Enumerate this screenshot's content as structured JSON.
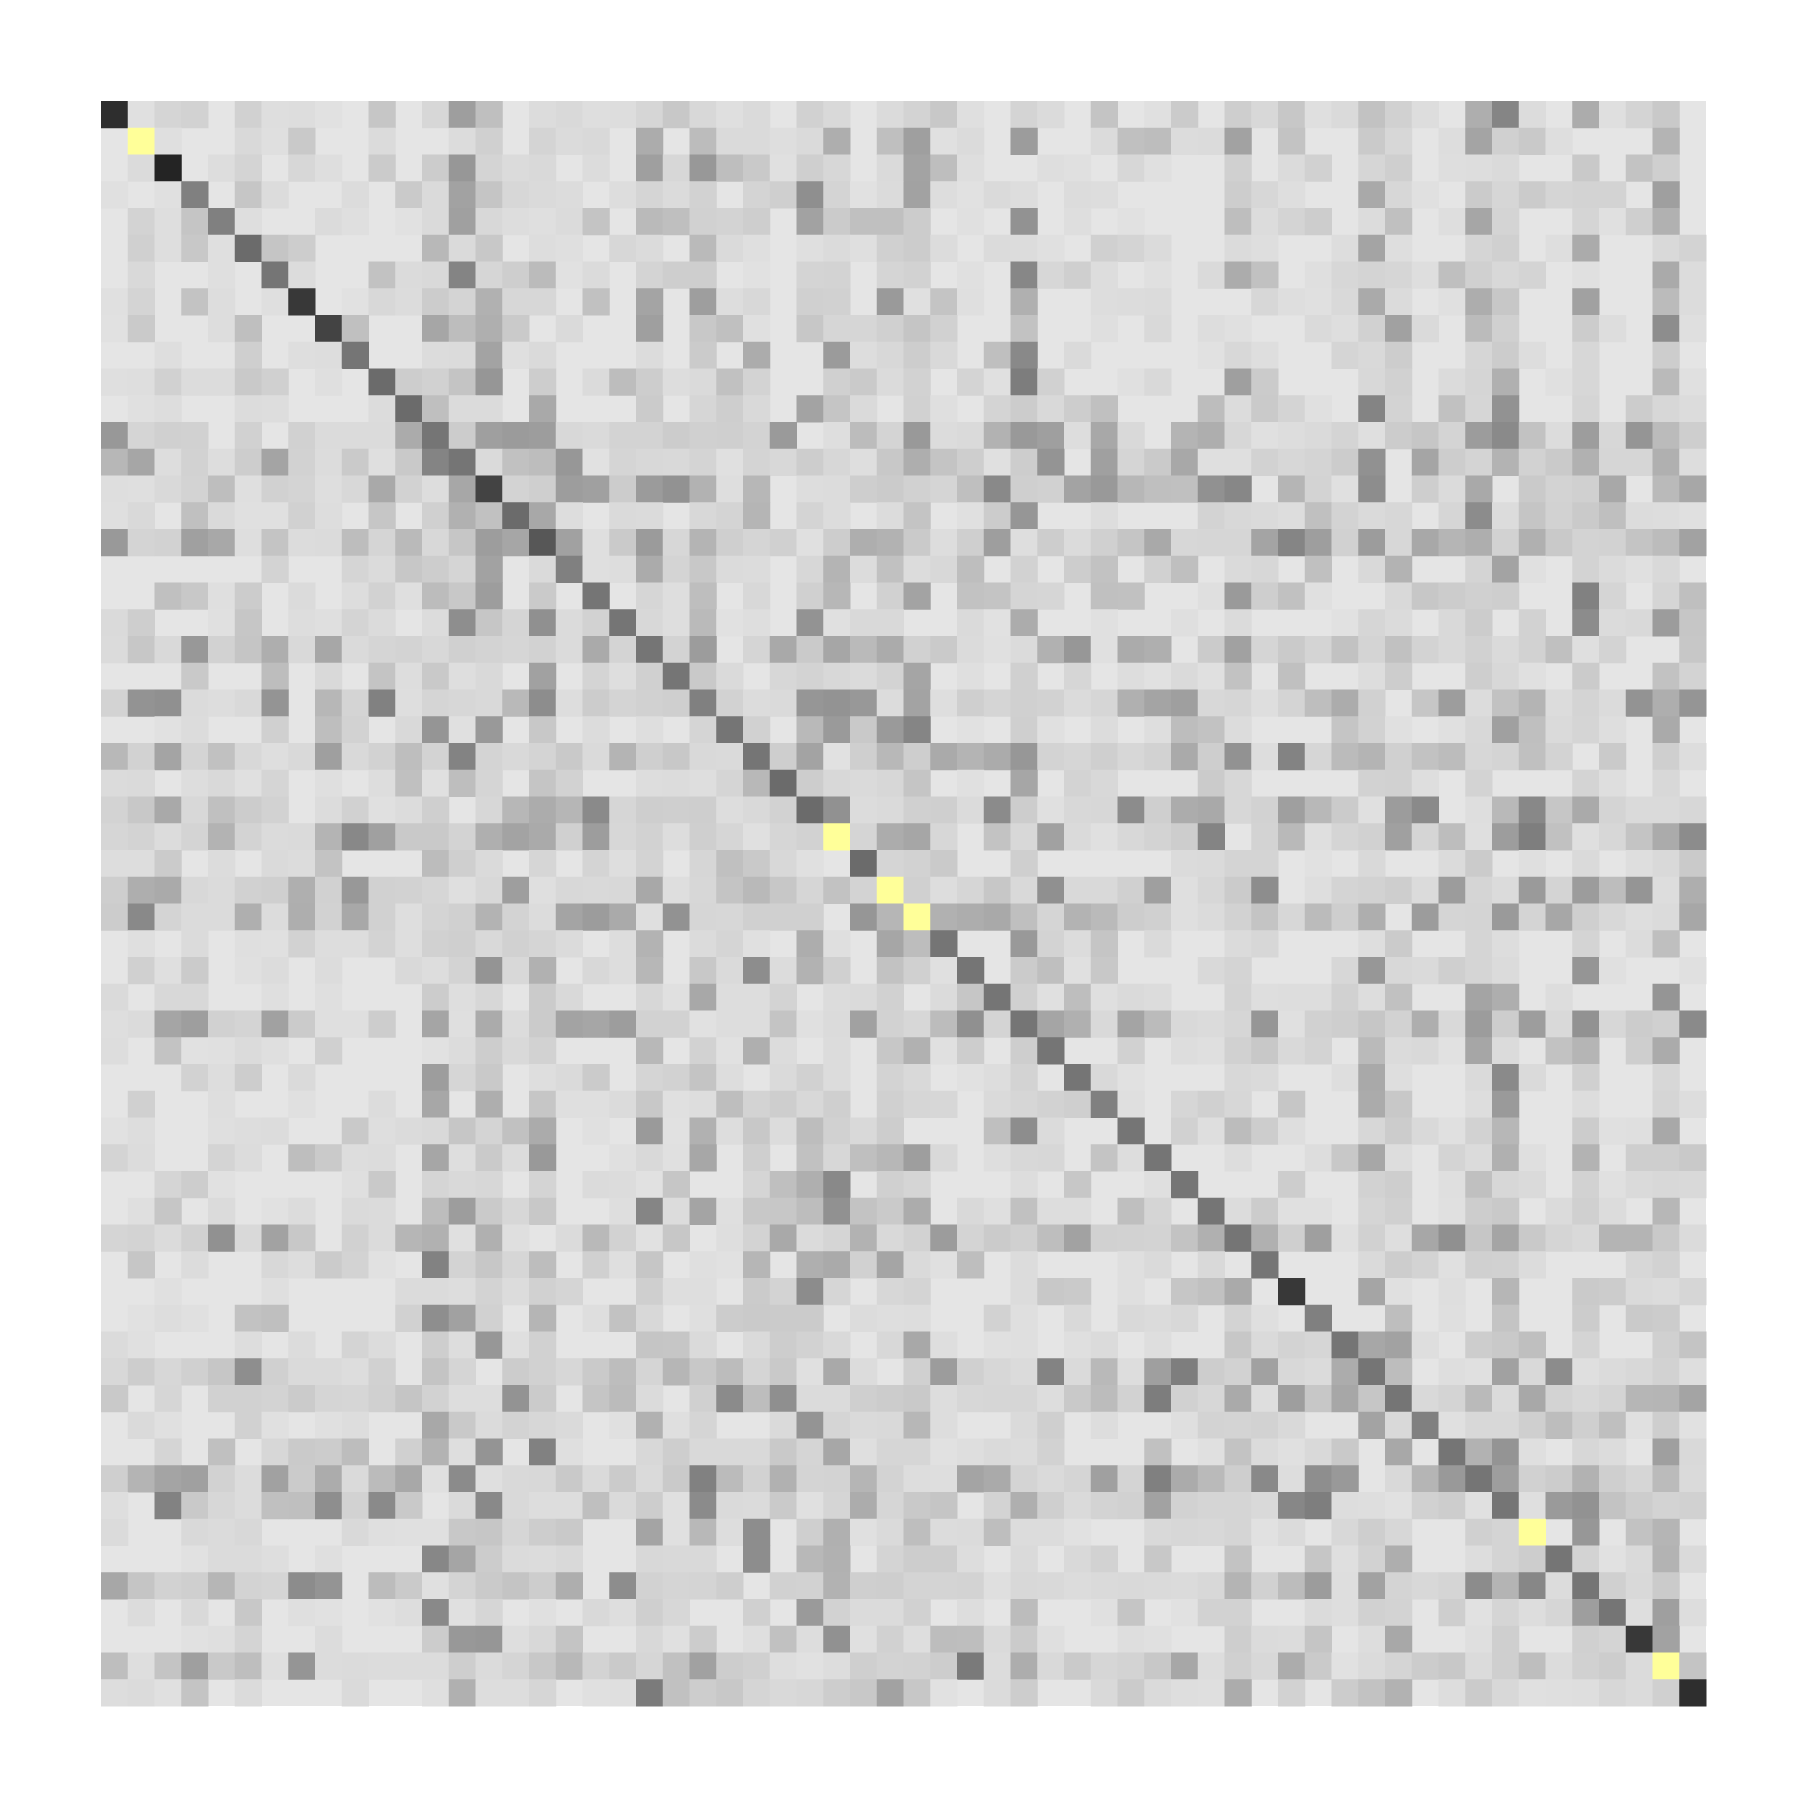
{
  "chart_data": {
    "type": "heatmap",
    "title": "",
    "xlabel": "",
    "ylabel": "",
    "n_rows": 60,
    "n_cols": 60,
    "axes_visible": false,
    "tick_labels_visible": false,
    "legend": "none",
    "grid": false,
    "value_range": [
      0,
      1
    ],
    "colors": {
      "background": "#e5e5e5",
      "diagonal_dark": "#2b2b2b",
      "diagonal_highlight": "#ffff99",
      "offdiag_light": "#d2d2d2",
      "offdiag_mid": "#b7b7b7",
      "offdiag_dark": "#8f8f8f"
    },
    "diagonal_values": [
      0.9,
      0.0,
      0.95,
      0.5,
      0.5,
      0.6,
      0.55,
      0.85,
      0.8,
      0.55,
      0.6,
      0.6,
      0.55,
      0.55,
      0.8,
      0.6,
      0.7,
      0.5,
      0.55,
      0.55,
      0.55,
      0.55,
      0.5,
      0.55,
      0.55,
      0.6,
      0.6,
      0.6,
      0.6,
      0.55,
      0.55,
      0.55,
      0.55,
      0.55,
      0.55,
      0.55,
      0.55,
      0.5,
      0.55,
      0.55,
      0.55,
      0.55,
      0.55,
      0.55,
      0.85,
      0.5,
      0.55,
      0.55,
      0.55,
      0.5,
      0.55,
      0.55,
      0.55,
      0.5,
      0.55,
      0.55,
      0.55,
      0.85,
      0.6,
      0.9
    ],
    "diagonal_highlight_indices": [
      1,
      27,
      29,
      30,
      53,
      58
    ],
    "off_diagonal_pattern": {
      "hub_indices": [
        12,
        13,
        14,
        16,
        20,
        22,
        24,
        26,
        27,
        29,
        30,
        34,
        42,
        47,
        48,
        51,
        52,
        55,
        58
      ],
      "hub_strength": 0.35,
      "background_strength_range": [
        0.0,
        0.2
      ]
    }
  }
}
